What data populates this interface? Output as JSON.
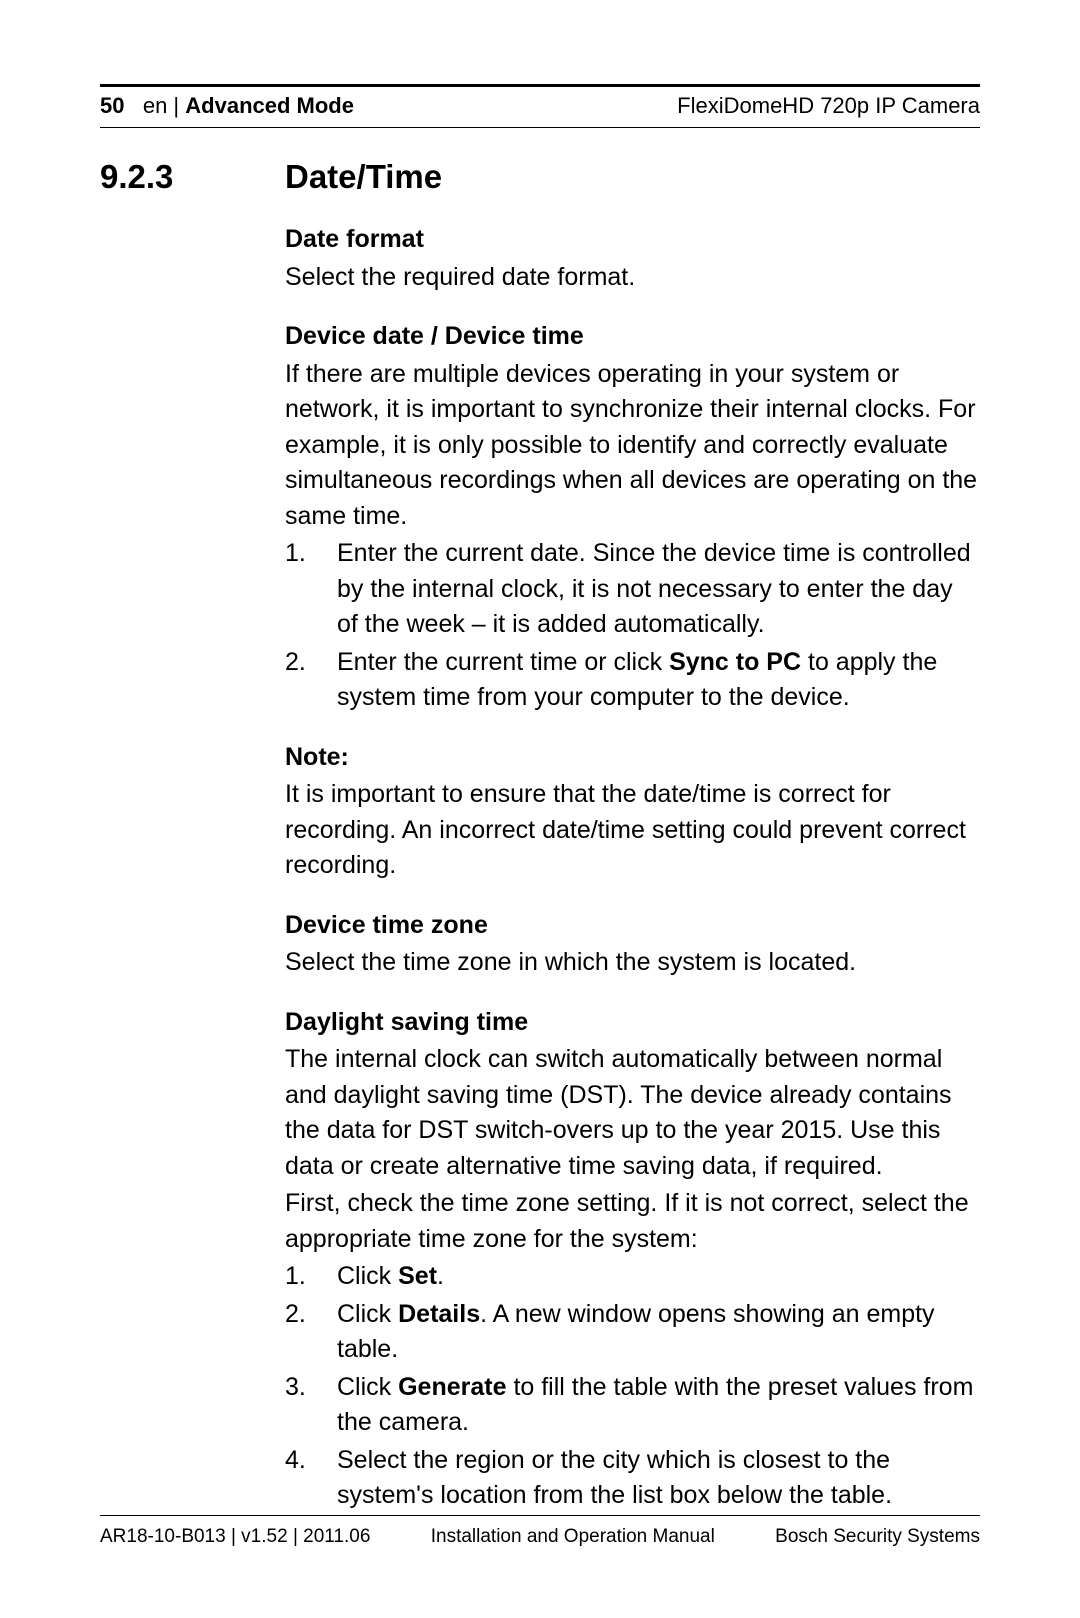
{
  "header": {
    "page_number": "50",
    "lang_sep": "en |",
    "section": "Advanced Mode",
    "product": "FlexiDomeHD 720p IP Camera"
  },
  "section": {
    "number": "9.2.3",
    "title": "Date/Time"
  },
  "sub1": {
    "heading": "Date format",
    "text": "Select the required date format."
  },
  "sub2": {
    "heading": "Device date / Device time",
    "intro": "If there are multiple devices operating in your system or network, it is important to synchronize their internal clocks. For example, it is only possible to identify and correctly evaluate simultaneous recordings when all devices are operating on the same time.",
    "items": [
      {
        "n": "1.",
        "text": "Enter the current date. Since the device time is controlled by the internal clock, it is not necessary to enter the day of the week – it is added automatically."
      },
      {
        "n": "2.",
        "pre": "Enter the current time or click ",
        "bold": "Sync to PC",
        "post": " to apply the system time from your computer to the device."
      }
    ]
  },
  "note": {
    "heading": "Note:",
    "text": "It is important to ensure that the date/time is correct for recording. An incorrect date/time setting could prevent correct recording."
  },
  "sub3": {
    "heading": "Device time zone",
    "text": "Select the time zone in which the system is located."
  },
  "sub4": {
    "heading": "Daylight saving time",
    "p1": "The internal clock can switch automatically between normal and daylight saving time (DST). The device already contains the data for DST switch-overs up to the year 2015. Use this data or create alternative time saving data, if required.",
    "p2": "First, check the time zone setting. If it is not correct, select the appropriate time zone for the system:",
    "items": [
      {
        "n": "1.",
        "pre": "Click ",
        "bold": "Set",
        "post": "."
      },
      {
        "n": "2.",
        "pre": "Click ",
        "bold": "Details",
        "post": ". A new window opens showing an empty table."
      },
      {
        "n": "3.",
        "pre": "Click ",
        "bold": "Generate",
        "post": " to fill the table with the preset values from the camera."
      },
      {
        "n": "4.",
        "text": "Select the region or the city which is closest to the system's location from the list box below the table."
      }
    ]
  },
  "footer": {
    "left": "AR18-10-B013 | v1.52 | 2011.06",
    "center": "Installation and Operation Manual",
    "right": "Bosch Security Systems"
  },
  "colors": {
    "text": "#000000",
    "background": "#ffffff",
    "rule": "#000000"
  },
  "typography": {
    "body_fontsize_pt": 19,
    "heading_fontsize_pt": 25,
    "header_fontsize_pt": 16,
    "footer_fontsize_pt": 14,
    "font_family": "Arial"
  }
}
